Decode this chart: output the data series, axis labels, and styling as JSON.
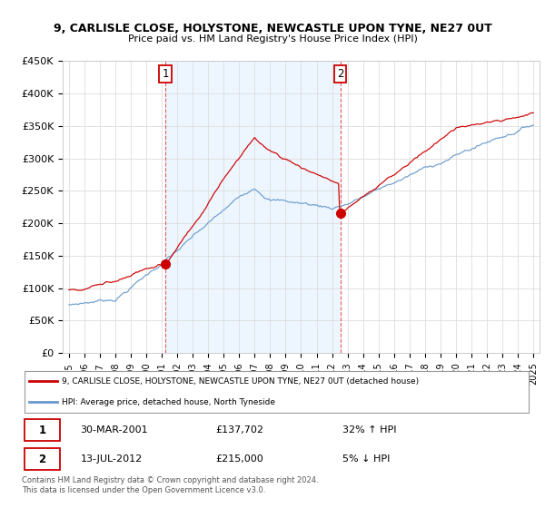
{
  "title_line1": "9, CARLISLE CLOSE, HOLYSTONE, NEWCASTLE UPON TYNE, NE27 0UT",
  "title_line2": "Price paid vs. HM Land Registry's House Price Index (HPI)",
  "ylim": [
    0,
    450000
  ],
  "yticks": [
    0,
    50000,
    100000,
    150000,
    200000,
    250000,
    300000,
    350000,
    400000,
    450000
  ],
  "ytick_labels": [
    "£0",
    "£50K",
    "£100K",
    "£150K",
    "£200K",
    "£250K",
    "£300K",
    "£350K",
    "£400K",
    "£450K"
  ],
  "sale1_year": 2001.24,
  "sale1_price": 137702,
  "sale2_year": 2012.54,
  "sale2_price": 215000,
  "legend_red": "9, CARLISLE CLOSE, HOLYSTONE, NEWCASTLE UPON TYNE, NE27 0UT (detached house)",
  "legend_blue": "HPI: Average price, detached house, North Tyneside",
  "table_row1": [
    "1",
    "30-MAR-2001",
    "£137,702",
    "32% ↑ HPI"
  ],
  "table_row2": [
    "2",
    "13-JUL-2012",
    "£215,000",
    "5% ↓ HPI"
  ],
  "footnote": "Contains HM Land Registry data © Crown copyright and database right 2024.\nThis data is licensed under the Open Government Licence v3.0.",
  "red_color": "#cc0000",
  "blue_color": "#6699cc",
  "blue_fill": "#ddeeff",
  "vline_color": "#dd3333",
  "grid_color": "#dddddd"
}
